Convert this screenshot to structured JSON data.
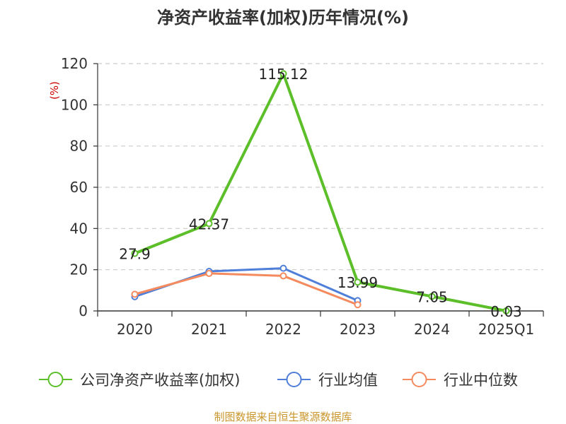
{
  "chart_data": {
    "type": "line",
    "title": "净资产收益率(加权)历年情况(%)",
    "ylabel": "(%)",
    "categories": [
      "2020",
      "2021",
      "2022",
      "2023",
      "2024",
      "2025Q1"
    ],
    "ylim": [
      0,
      120
    ],
    "yticks": [
      0,
      20,
      40,
      60,
      80,
      100,
      120
    ],
    "grid": true,
    "legend_position": "bottom",
    "series": [
      {
        "name": "公司净资产收益率(加权)",
        "color": "#5cbf2a",
        "values": [
          27.9,
          42.37,
          115.12,
          13.99,
          7.05,
          0.03
        ],
        "labels": [
          "27.9",
          "42.37",
          "115.12",
          "13.99",
          "7.05",
          "0.03"
        ]
      },
      {
        "name": "行业均值",
        "color": "#4f7fd9",
        "values": [
          6.9,
          19.2,
          20.7,
          5.0,
          null,
          null
        ]
      },
      {
        "name": "行业中位数",
        "color": "#f48a5e",
        "values": [
          8.1,
          18.2,
          17.0,
          3.0,
          null,
          null
        ]
      }
    ]
  },
  "source": "制图数据来自恒生聚源数据库"
}
